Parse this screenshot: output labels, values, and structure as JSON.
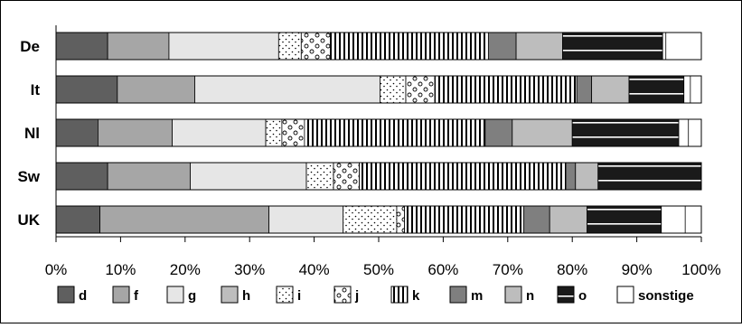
{
  "chart_data": {
    "type": "bar",
    "orientation": "horizontal",
    "stacked": "percent",
    "categories": [
      "De",
      "It",
      "Nl",
      "Sw",
      "UK"
    ],
    "xlim": [
      0,
      100
    ],
    "tick_labels": [
      "0%",
      "10%",
      "20%",
      "30%",
      "40%",
      "50%",
      "60%",
      "70%",
      "80%",
      "90%",
      "100%"
    ],
    "grid": false,
    "legend_position": "bottom",
    "series": [
      {
        "name": "d",
        "color": "#5f5f5f",
        "pattern": "solid",
        "values": [
          8,
          9.5,
          6.5,
          8,
          6.8
        ]
      },
      {
        "name": "f",
        "color": "#a6a6a6",
        "pattern": "solid",
        "values": [
          9.5,
          12,
          11.5,
          12.8,
          26.2
        ]
      },
      {
        "name": "g",
        "color": "#e6e6e6",
        "pattern": "solid",
        "values": [
          17,
          28.7,
          14.5,
          18,
          11.5
        ]
      },
      {
        "name": "h",
        "color": "#bdbdbd",
        "pattern": "solid",
        "values": [
          0,
          0,
          0,
          0,
          0
        ]
      },
      {
        "name": "i",
        "color": "#ffffff",
        "pattern": "dots",
        "values": [
          3.5,
          4,
          2.5,
          4.2,
          8.3
        ]
      },
      {
        "name": "j",
        "color": "#ffffff",
        "pattern": "circles",
        "values": [
          4.5,
          4.5,
          3.5,
          4,
          1.2
        ]
      },
      {
        "name": "k",
        "color": "#ffffff",
        "pattern": "vlines",
        "values": [
          24.5,
          22,
          28,
          32,
          18.5
        ]
      },
      {
        "name": "m",
        "color": "#7f7f7f",
        "pattern": "solid",
        "values": [
          4.3,
          2.3,
          4.2,
          1.5,
          4
        ]
      },
      {
        "name": "n",
        "color": "#bdbdbd",
        "pattern": "solid",
        "values": [
          7.2,
          5.8,
          9.3,
          3.5,
          5.8
        ]
      },
      {
        "name": "o",
        "color": "#1a1a1a",
        "pattern": "hlines",
        "values": [
          15.5,
          8.5,
          16.5,
          16,
          11.5
        ]
      },
      {
        "name": "sonstige",
        "color": "#ffffff",
        "pattern": "solid",
        "values": [
          0.5,
          1,
          1.5,
          0,
          3.7
        ]
      }
    ]
  }
}
